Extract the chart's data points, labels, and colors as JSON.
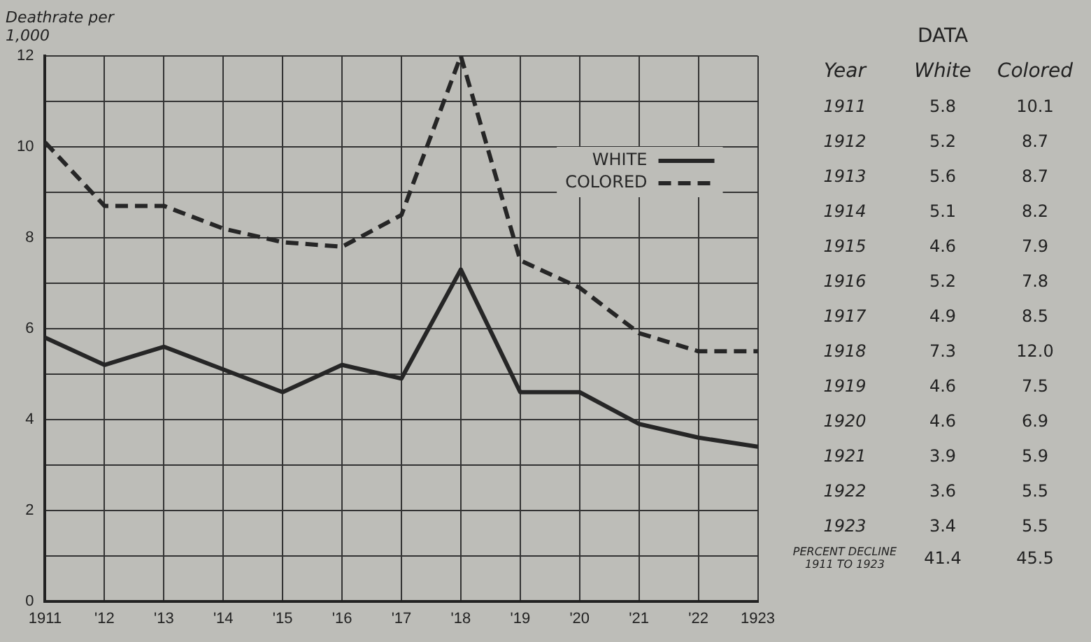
{
  "chart_data": {
    "type": "line",
    "ylabel": "Deathrate per 1,000",
    "categories": [
      "1911",
      "'12",
      "'13",
      "'14",
      "'15",
      "'16",
      "'17",
      "'18",
      "'19",
      "'20",
      "'21",
      "'22",
      "1923"
    ],
    "series": [
      {
        "name": "WHITE",
        "color": "#262626",
        "line_style": "solid",
        "values": [
          5.8,
          5.2,
          5.6,
          5.1,
          4.6,
          5.2,
          4.9,
          7.3,
          4.6,
          4.6,
          3.9,
          3.6,
          3.4
        ]
      },
      {
        "name": "COLORED",
        "color": "#262626",
        "line_style": "dashed",
        "values": [
          10.1,
          8.7,
          8.7,
          8.2,
          7.9,
          7.8,
          8.5,
          12.0,
          7.5,
          6.9,
          5.9,
          5.5,
          5.5
        ]
      }
    ],
    "ylim": [
      0,
      12
    ],
    "yticks": [
      0,
      {
        "value": 1,
        "label": null
      },
      2,
      {
        "value": 3,
        "label": null
      },
      4,
      {
        "value": 5,
        "label": null
      },
      6,
      {
        "value": 7,
        "label": null
      },
      8,
      {
        "value": 9,
        "label": null
      },
      10,
      {
        "value": 11,
        "label": null
      },
      12
    ],
    "grid": true,
    "legend": "top right",
    "marker": "none",
    "annotations": [
      "DATA",
      "Year",
      "White",
      "Colored",
      "1911",
      "5.8",
      "10.1",
      "1912",
      "5.2",
      "8.7",
      "1913",
      "5.6",
      "8.7",
      "1914",
      "5.1",
      "8.2",
      "1915",
      "4.6",
      "7.9",
      "1916",
      "5.2",
      "7.8",
      "1917",
      "4.9",
      "8.5",
      "1918",
      "7.3",
      "12.0",
      "1919",
      "4.6",
      "7.5",
      "1920",
      "4.6",
      "6.9",
      "1921",
      "3.9",
      "5.9",
      "1922",
      "3.6",
      "5.5",
      "1923",
      "3.4",
      "5.5",
      "PERCENT DECLINE 1911 TO 1923",
      "41.4",
      "45.5"
    ]
  }
}
